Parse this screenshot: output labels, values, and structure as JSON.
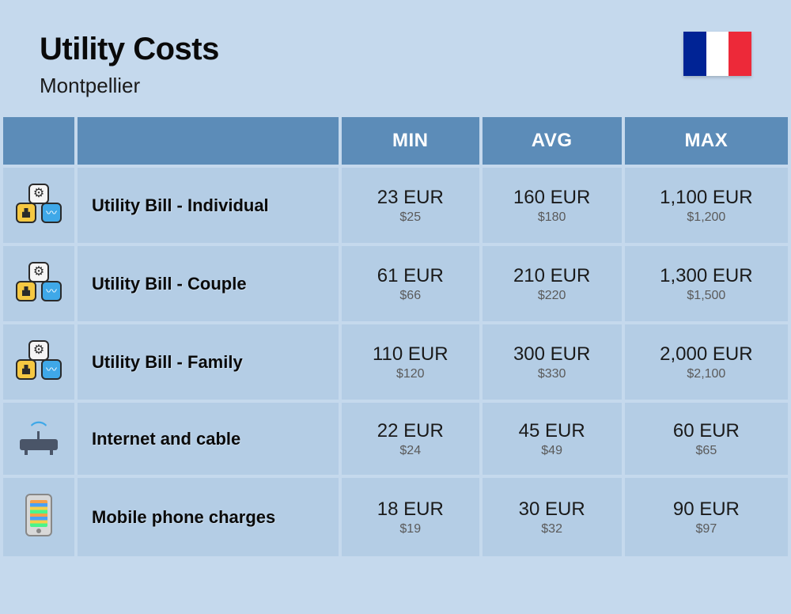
{
  "header": {
    "title": "Utility Costs",
    "subtitle": "Montpellier",
    "flag_colors": [
      "#002395",
      "#ffffff",
      "#ed2939"
    ]
  },
  "table": {
    "header_bg": "#5c8cb8",
    "header_text_color": "#ffffff",
    "row_bg": "#b4cde5",
    "page_bg": "#c5d9ed",
    "columns": [
      "MIN",
      "AVG",
      "MAX"
    ],
    "rows": [
      {
        "icon": "utility",
        "label": "Utility Bill - Individual",
        "min": {
          "primary": "23 EUR",
          "secondary": "$25"
        },
        "avg": {
          "primary": "160 EUR",
          "secondary": "$180"
        },
        "max": {
          "primary": "1,100 EUR",
          "secondary": "$1,200"
        }
      },
      {
        "icon": "utility",
        "label": "Utility Bill - Couple",
        "min": {
          "primary": "61 EUR",
          "secondary": "$66"
        },
        "avg": {
          "primary": "210 EUR",
          "secondary": "$220"
        },
        "max": {
          "primary": "1,300 EUR",
          "secondary": "$1,500"
        }
      },
      {
        "icon": "utility",
        "label": "Utility Bill - Family",
        "min": {
          "primary": "110 EUR",
          "secondary": "$120"
        },
        "avg": {
          "primary": "300 EUR",
          "secondary": "$330"
        },
        "max": {
          "primary": "2,000 EUR",
          "secondary": "$2,100"
        }
      },
      {
        "icon": "router",
        "label": "Internet and cable",
        "min": {
          "primary": "22 EUR",
          "secondary": "$24"
        },
        "avg": {
          "primary": "45 EUR",
          "secondary": "$49"
        },
        "max": {
          "primary": "60 EUR",
          "secondary": "$65"
        }
      },
      {
        "icon": "phone",
        "label": "Mobile phone charges",
        "min": {
          "primary": "18 EUR",
          "secondary": "$19"
        },
        "avg": {
          "primary": "30 EUR",
          "secondary": "$32"
        },
        "max": {
          "primary": "90 EUR",
          "secondary": "$97"
        }
      }
    ]
  }
}
